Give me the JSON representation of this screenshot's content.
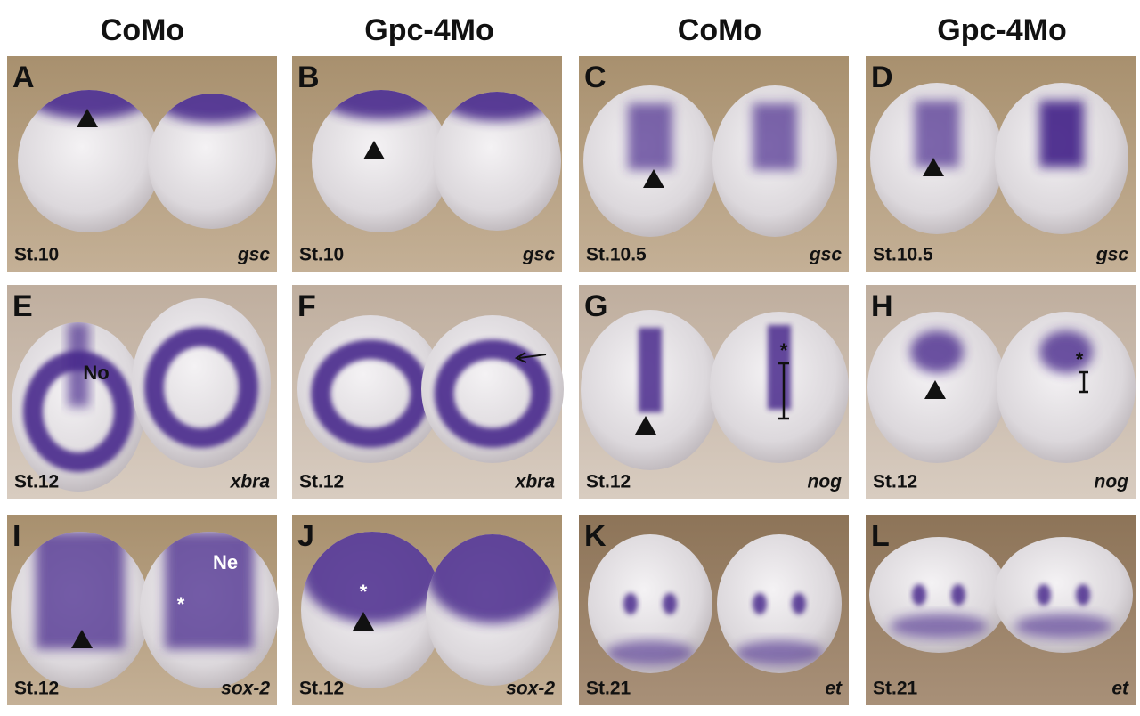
{
  "column_headers": [
    "CoMo",
    "Gpc-4Mo",
    "CoMo",
    "Gpc-4Mo"
  ],
  "panels": [
    {
      "letter": "A",
      "stage": "St.10",
      "gene": "gsc"
    },
    {
      "letter": "B",
      "stage": "St.10",
      "gene": "gsc"
    },
    {
      "letter": "C",
      "stage": "St.10.5",
      "gene": "gsc"
    },
    {
      "letter": "D",
      "stage": "St.10.5",
      "gene": "gsc"
    },
    {
      "letter": "E",
      "stage": "St.12",
      "gene": "xbra",
      "annotations": [
        "No"
      ]
    },
    {
      "letter": "F",
      "stage": "St.12",
      "gene": "xbra"
    },
    {
      "letter": "G",
      "stage": "St.12",
      "gene": "nog",
      "annotations": [
        "*"
      ]
    },
    {
      "letter": "H",
      "stage": "St.12",
      "gene": "nog",
      "annotations": [
        "*"
      ]
    },
    {
      "letter": "I",
      "stage": "St.12",
      "gene": "sox-2",
      "annotations": [
        "Ne",
        "*"
      ]
    },
    {
      "letter": "J",
      "stage": "St.12",
      "gene": "sox-2",
      "annotations": [
        "*"
      ]
    },
    {
      "letter": "K",
      "stage": "St.21",
      "gene": "et"
    },
    {
      "letter": "L",
      "stage": "St.21",
      "gene": "et"
    }
  ]
}
